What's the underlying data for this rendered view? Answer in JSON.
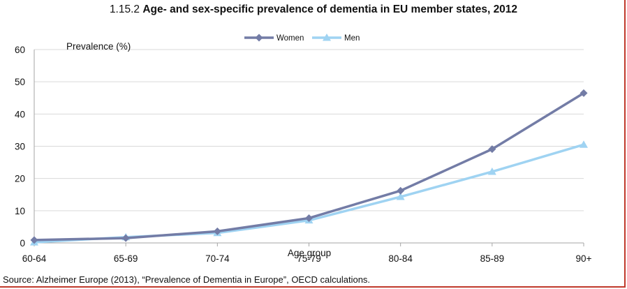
{
  "title": {
    "number": "1.15.2",
    "text": "Age- and sex-specific prevalence of dementia in EU member states, 2012"
  },
  "source": "Source: Alzheimer Europe (2013), “Prevalence of Dementia in Europe”, OECD calculations.",
  "colors": {
    "women": "#737ca6",
    "men": "#9fd3f2",
    "grid": "#d9d9d9",
    "axis": "#a6a6a6",
    "border": "#c0392b"
  },
  "chart_data": {
    "type": "line",
    "title": "Age- and sex-specific prevalence of dementia in EU member states, 2012",
    "xlabel": "Age group",
    "ylabel": "Prevalence (%)",
    "categories": [
      "60-64",
      "65-69",
      "70-74",
      "75-79",
      "80-84",
      "85-89",
      "90+"
    ],
    "ylim": [
      0,
      60
    ],
    "yticks": [
      0,
      10,
      20,
      30,
      40,
      50,
      60
    ],
    "grid": true,
    "legend_position": "top-center",
    "series": [
      {
        "name": "Women",
        "marker": "diamond",
        "values": [
          0.9,
          1.5,
          3.6,
          7.7,
          16.2,
          29.1,
          46.5
        ]
      },
      {
        "name": "Men",
        "marker": "triangle",
        "values": [
          0.2,
          1.8,
          3.1,
          7.0,
          14.3,
          22.1,
          30.5
        ]
      }
    ]
  }
}
